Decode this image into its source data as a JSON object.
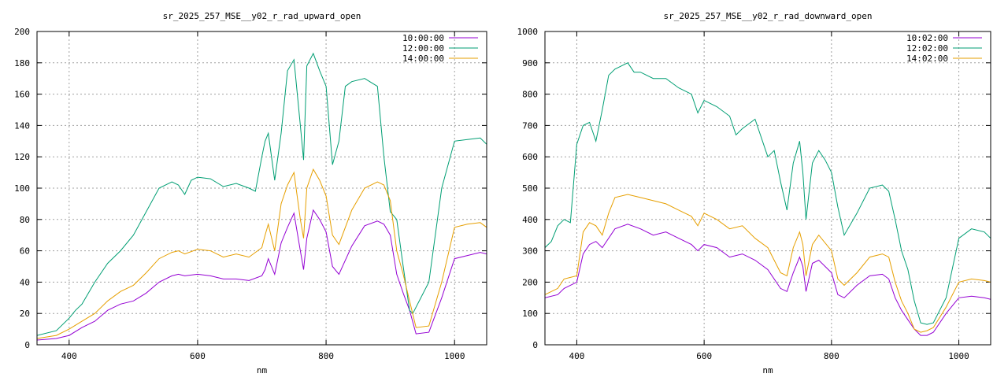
{
  "chart_data": [
    {
      "type": "line",
      "title": "sr_2025_257_MSE__y02_r_rad_upward_open",
      "xlabel": "nm",
      "ylabel": "",
      "xlim": [
        350,
        1050
      ],
      "ylim": [
        0,
        200
      ],
      "xticks": [
        400,
        600,
        800,
        1000
      ],
      "yticks": [
        0,
        20,
        40,
        60,
        80,
        100,
        120,
        140,
        160,
        180,
        200
      ],
      "grid": true,
      "legend_position": "top-right",
      "series": [
        {
          "name": "10:00:00",
          "color": "#9400d3",
          "x": [
            350,
            380,
            400,
            420,
            440,
            460,
            480,
            500,
            520,
            540,
            560,
            570,
            580,
            600,
            620,
            640,
            660,
            680,
            700,
            705,
            710,
            720,
            730,
            740,
            750,
            760,
            765,
            770,
            780,
            790,
            800,
            810,
            820,
            840,
            860,
            880,
            890,
            900,
            910,
            920,
            930,
            940,
            960,
            980,
            1000,
            1020,
            1040,
            1050
          ],
          "y": [
            3,
            4,
            6,
            11,
            15,
            22,
            26,
            28,
            33,
            40,
            44,
            45,
            44,
            45,
            44,
            42,
            42,
            41,
            44,
            48,
            55,
            45,
            65,
            75,
            84,
            60,
            48,
            68,
            86,
            80,
            72,
            50,
            45,
            63,
            76,
            79,
            77,
            70,
            45,
            33,
            22,
            7,
            8,
            30,
            55,
            57,
            59,
            58
          ]
        },
        {
          "name": "12:00:00",
          "color": "#009e73",
          "x": [
            350,
            380,
            400,
            410,
            420,
            440,
            460,
            480,
            500,
            520,
            540,
            560,
            570,
            580,
            590,
            600,
            620,
            640,
            660,
            680,
            690,
            700,
            705,
            710,
            720,
            730,
            740,
            750,
            760,
            765,
            770,
            780,
            790,
            800,
            810,
            820,
            830,
            840,
            860,
            880,
            890,
            900,
            910,
            920,
            930,
            935,
            940,
            960,
            980,
            1000,
            1020,
            1040,
            1050
          ],
          "y": [
            6,
            9,
            17,
            22,
            26,
            40,
            52,
            60,
            70,
            85,
            100,
            104,
            102,
            96,
            105,
            107,
            106,
            101,
            103,
            100,
            98,
            120,
            130,
            135,
            105,
            135,
            175,
            182,
            140,
            118,
            178,
            186,
            175,
            165,
            115,
            130,
            165,
            168,
            170,
            165,
            120,
            85,
            80,
            50,
            22,
            20,
            24,
            40,
            100,
            130,
            131,
            132,
            128
          ]
        },
        {
          "name": "14:00:00",
          "color": "#e69f00",
          "x": [
            350,
            380,
            400,
            420,
            440,
            460,
            480,
            500,
            520,
            540,
            560,
            570,
            580,
            600,
            620,
            640,
            660,
            680,
            700,
            705,
            710,
            720,
            730,
            740,
            750,
            760,
            765,
            770,
            780,
            790,
            800,
            810,
            820,
            840,
            860,
            880,
            890,
            900,
            910,
            920,
            930,
            940,
            960,
            980,
            1000,
            1020,
            1040,
            1050
          ],
          "y": [
            4,
            6,
            10,
            15,
            20,
            28,
            34,
            38,
            46,
            55,
            59,
            60,
            58,
            61,
            60,
            56,
            58,
            56,
            62,
            70,
            77,
            60,
            90,
            102,
            110,
            80,
            68,
            100,
            112,
            105,
            95,
            70,
            64,
            86,
            100,
            104,
            102,
            92,
            60,
            45,
            28,
            11,
            12,
            40,
            75,
            77,
            78,
            75
          ]
        }
      ]
    },
    {
      "type": "line",
      "title": "sr_2025_257_MSE__y02_r_rad_downward_open",
      "xlabel": "nm",
      "ylabel": "",
      "xlim": [
        350,
        1050
      ],
      "ylim": [
        0,
        1000
      ],
      "xticks": [
        400,
        600,
        800,
        1000
      ],
      "yticks": [
        0,
        100,
        200,
        300,
        400,
        500,
        600,
        700,
        800,
        900,
        1000
      ],
      "grid": true,
      "legend_position": "top-right",
      "series": [
        {
          "name": "10:02:00",
          "color": "#9400d3",
          "x": [
            350,
            370,
            380,
            390,
            400,
            410,
            420,
            430,
            440,
            460,
            480,
            500,
            520,
            540,
            560,
            580,
            590,
            600,
            620,
            640,
            660,
            680,
            700,
            720,
            730,
            740,
            750,
            755,
            760,
            770,
            780,
            800,
            810,
            820,
            840,
            860,
            880,
            890,
            900,
            910,
            920,
            930,
            940,
            950,
            960,
            980,
            1000,
            1020,
            1040,
            1050
          ],
          "y": [
            150,
            160,
            180,
            190,
            200,
            290,
            320,
            330,
            310,
            370,
            385,
            370,
            350,
            360,
            340,
            320,
            300,
            320,
            310,
            280,
            290,
            270,
            240,
            180,
            170,
            230,
            280,
            250,
            170,
            260,
            270,
            230,
            160,
            150,
            190,
            220,
            225,
            210,
            150,
            110,
            80,
            50,
            30,
            30,
            40,
            100,
            150,
            155,
            150,
            145
          ]
        },
        {
          "name": "12:02:00",
          "color": "#009e73",
          "x": [
            350,
            360,
            370,
            380,
            390,
            400,
            410,
            420,
            430,
            440,
            450,
            460,
            470,
            480,
            490,
            500,
            520,
            540,
            560,
            580,
            590,
            600,
            620,
            640,
            650,
            660,
            680,
            700,
            710,
            720,
            730,
            740,
            750,
            755,
            760,
            770,
            780,
            790,
            800,
            810,
            820,
            840,
            860,
            880,
            890,
            900,
            910,
            920,
            930,
            940,
            950,
            960,
            980,
            1000,
            1020,
            1040,
            1050
          ],
          "y": [
            310,
            330,
            380,
            400,
            390,
            640,
            700,
            710,
            650,
            750,
            860,
            880,
            890,
            900,
            870,
            870,
            850,
            850,
            820,
            800,
            740,
            780,
            760,
            730,
            670,
            690,
            720,
            600,
            620,
            520,
            430,
            580,
            650,
            550,
            400,
            580,
            620,
            590,
            550,
            440,
            350,
            420,
            500,
            510,
            490,
            400,
            300,
            240,
            140,
            70,
            65,
            70,
            150,
            340,
            370,
            360,
            340
          ]
        },
        {
          "name": "14:02:00",
          "color": "#e69f00",
          "x": [
            350,
            370,
            380,
            390,
            400,
            410,
            420,
            430,
            440,
            450,
            460,
            480,
            500,
            520,
            540,
            560,
            580,
            590,
            600,
            620,
            640,
            660,
            680,
            700,
            720,
            730,
            740,
            750,
            755,
            760,
            770,
            780,
            800,
            810,
            820,
            840,
            860,
            880,
            890,
            900,
            910,
            920,
            930,
            940,
            950,
            960,
            980,
            1000,
            1020,
            1040,
            1050
          ],
          "y": [
            160,
            180,
            210,
            215,
            220,
            360,
            390,
            380,
            350,
            420,
            470,
            480,
            470,
            460,
            450,
            430,
            410,
            380,
            420,
            400,
            370,
            380,
            340,
            310,
            230,
            220,
            310,
            360,
            320,
            220,
            320,
            350,
            300,
            210,
            190,
            230,
            280,
            290,
            280,
            200,
            140,
            100,
            50,
            40,
            45,
            55,
            120,
            200,
            210,
            205,
            200
          ]
        }
      ]
    }
  ]
}
